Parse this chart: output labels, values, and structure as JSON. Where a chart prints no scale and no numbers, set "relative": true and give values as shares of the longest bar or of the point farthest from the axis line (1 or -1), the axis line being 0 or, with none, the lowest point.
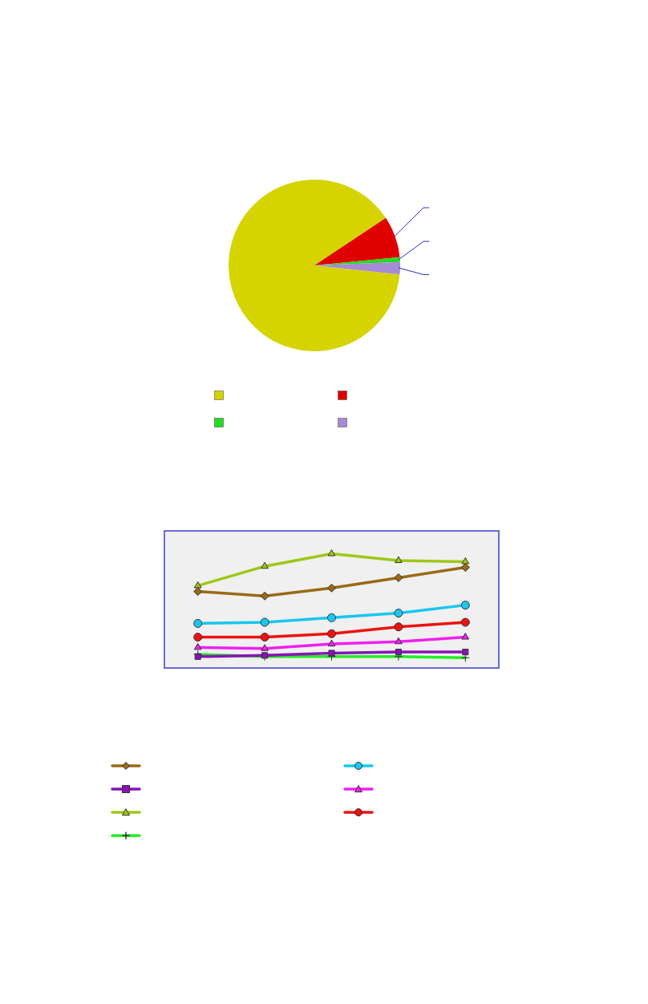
{
  "chart_data": [
    {
      "type": "pie",
      "categories": [
        null,
        null,
        null,
        null
      ],
      "values": [
        89,
        7.8,
        0.9,
        2.3
      ],
      "colors": [
        "#d6d400",
        "#e00000",
        "#22dd22",
        "#a78bd6"
      ]
    },
    {
      "type": "line",
      "relative": true,
      "categories": [
        null,
        null,
        null,
        null,
        null
      ],
      "series": [
        {
          "color": "#9a6a16",
          "marker": "diamond",
          "values": [
            0.67,
            0.63,
            0.7,
            0.79,
            0.88
          ]
        },
        {
          "color": "#17c7ef",
          "marker": "circle",
          "values": [
            0.39,
            0.4,
            0.44,
            0.48,
            0.55
          ]
        },
        {
          "color": "#8a12b8",
          "marker": "square",
          "values": [
            0.1,
            0.11,
            0.13,
            0.14,
            0.14
          ]
        },
        {
          "color": "#f020f0",
          "marker": "triangle",
          "values": [
            0.18,
            0.17,
            0.21,
            0.23,
            0.27
          ]
        },
        {
          "color": "#9dc814",
          "marker": "triangle",
          "values": [
            0.72,
            0.89,
            1,
            0.94,
            0.93
          ]
        },
        {
          "color": "#ee1111",
          "marker": "circle",
          "values": [
            0.27,
            0.27,
            0.3,
            0.36,
            0.4
          ]
        },
        {
          "color": "#22ee22",
          "marker": "cross",
          "values": [
            0.12,
            0.1,
            0.1,
            0.1,
            0.09
          ]
        }
      ]
    }
  ]
}
